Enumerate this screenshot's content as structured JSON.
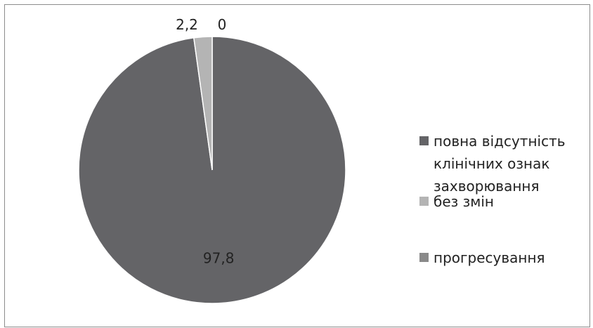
{
  "chart_data": {
    "type": "pie",
    "categories": [
      "повна відсутність клінічних ознак захворювання",
      "без змін",
      "прогресування"
    ],
    "values": [
      97.8,
      2.2,
      0
    ],
    "data_labels": [
      "97,8",
      "2,2",
      "0"
    ],
    "colors": [
      "#646467",
      "#b4b4b4",
      "#8a8a8a"
    ],
    "start_angle_deg": 0,
    "direction": "clockwise",
    "legend_position": "right",
    "grid": false
  }
}
